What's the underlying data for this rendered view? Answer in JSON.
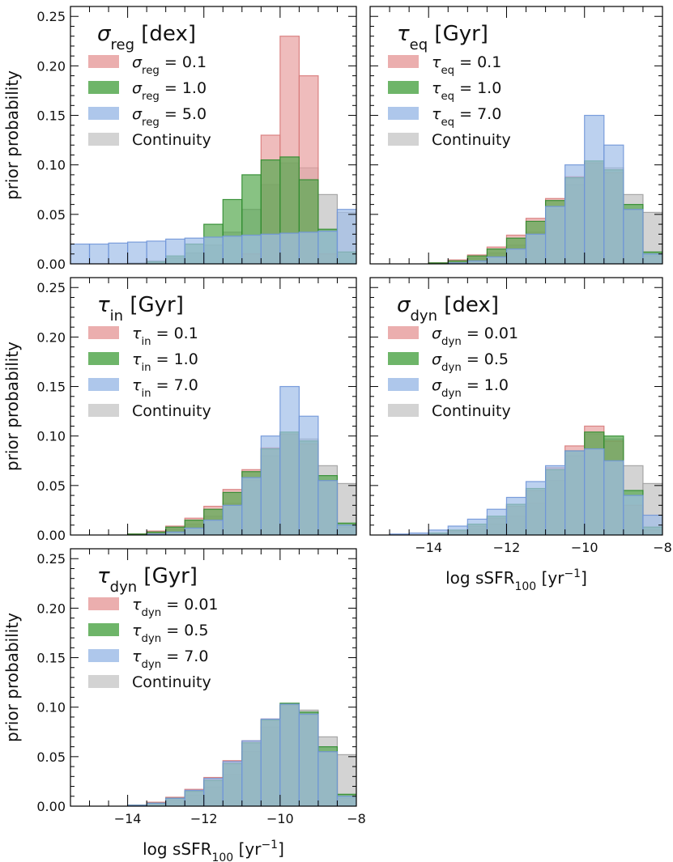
{
  "chart_data": [
    {
      "type": "histogram",
      "panel": "sigma_reg",
      "title": {
        "sym": "σ",
        "sub": "reg",
        "unit": "[dex]"
      },
      "xlabel": {
        "pre": "log sSFR",
        "sub": "100",
        "post": " [yr",
        "sup": "−1",
        "end": "]"
      },
      "xlabel_shown": false,
      "ylabel": "prior probability",
      "xlim": [
        -15.5,
        -8
      ],
      "ylim": [
        0,
        0.26
      ],
      "x_ticks": [
        -14,
        -12,
        -10,
        -8
      ],
      "x_tick_labels_shown": false,
      "y_ticks": [
        0.0,
        0.05,
        0.1,
        0.15,
        0.2,
        0.25
      ],
      "y_tick_labels": [
        "0.00",
        "0.05",
        "0.10",
        "0.15",
        "0.20",
        "0.25"
      ],
      "bin_edges": [
        -15.5,
        -15.0,
        -14.5,
        -14.0,
        -13.5,
        -13.0,
        -12.5,
        -12.0,
        -11.5,
        -11.0,
        -10.5,
        -10.0,
        -9.5,
        -9.0,
        -8.5,
        -8.0
      ],
      "series": [
        {
          "name": "Continuity",
          "label": "Continuity",
          "color": "#c8c8c8",
          "edge": "#a0a0a0",
          "values": [
            0.0,
            0.0,
            0.0,
            0.001,
            0.003,
            0.006,
            0.011,
            0.019,
            0.032,
            0.055,
            0.08,
            0.102,
            0.097,
            0.07,
            0.052
          ]
        },
        {
          "name": "sigma_reg=0.1",
          "label": {
            "sym": "σ",
            "sub": "reg",
            "val": "0.1"
          },
          "color": "#e8a0a0",
          "edge": "#d77a7a",
          "values": [
            0.0,
            0.0,
            0.0,
            0.0,
            0.0,
            0.0,
            0.0,
            0.0,
            0.0,
            0.01,
            0.13,
            0.23,
            0.19,
            0.01,
            0.0
          ]
        },
        {
          "name": "sigma_reg=1.0",
          "label": {
            "sym": "σ",
            "sub": "reg",
            "val": "1.0"
          },
          "color": "#55a84f",
          "edge": "#2e8b2e",
          "values": [
            0.0,
            0.0,
            0.0,
            0.0,
            0.002,
            0.008,
            0.02,
            0.04,
            0.065,
            0.09,
            0.105,
            0.108,
            0.085,
            0.035,
            0.012
          ]
        },
        {
          "name": "sigma_reg=5.0",
          "label": {
            "sym": "σ",
            "sub": "reg",
            "val": "5.0"
          },
          "color": "#a0bde8",
          "edge": "#6f95d8",
          "values": [
            0.02,
            0.02,
            0.021,
            0.022,
            0.023,
            0.025,
            0.026,
            0.027,
            0.028,
            0.029,
            0.03,
            0.031,
            0.032,
            0.033,
            0.055
          ]
        }
      ]
    },
    {
      "type": "histogram",
      "panel": "tau_eq",
      "title": {
        "sym": "τ",
        "sub": "eq",
        "unit": "[Gyr]"
      },
      "xlabel": {
        "pre": "log sSFR",
        "sub": "100",
        "post": " [yr",
        "sup": "−1",
        "end": "]"
      },
      "xlabel_shown": false,
      "ylabel": "prior probability",
      "ylabel_shown": false,
      "xlim": [
        -15.5,
        -8
      ],
      "ylim": [
        0,
        0.26
      ],
      "x_ticks": [
        -14,
        -12,
        -10,
        -8
      ],
      "x_tick_labels_shown": false,
      "y_ticks": [
        0.0,
        0.05,
        0.1,
        0.15,
        0.2,
        0.25
      ],
      "y_tick_labels_shown": false,
      "bin_edges": [
        -15.5,
        -15.0,
        -14.5,
        -14.0,
        -13.5,
        -13.0,
        -12.5,
        -12.0,
        -11.5,
        -11.0,
        -10.5,
        -10.0,
        -9.5,
        -9.0,
        -8.5,
        -8.0
      ],
      "series": [
        {
          "name": "Continuity",
          "label": "Continuity",
          "color": "#c8c8c8",
          "edge": "#a0a0a0",
          "values": [
            0.0,
            0.0,
            0.0,
            0.001,
            0.003,
            0.006,
            0.011,
            0.019,
            0.032,
            0.055,
            0.08,
            0.102,
            0.097,
            0.07,
            0.052
          ]
        },
        {
          "name": "tau_eq=0.1",
          "label": {
            "sym": "τ",
            "sub": "eq",
            "val": "0.1"
          },
          "color": "#e8a0a0",
          "edge": "#d77a7a",
          "values": [
            0.0,
            0.0,
            0.0,
            0.001,
            0.004,
            0.009,
            0.017,
            0.029,
            0.046,
            0.066,
            0.088,
            0.102,
            0.092,
            0.055,
            0.008
          ]
        },
        {
          "name": "tau_eq=1.0",
          "label": {
            "sym": "τ",
            "sub": "eq",
            "val": "1.0"
          },
          "color": "#55a84f",
          "edge": "#2e8b2e",
          "values": [
            0.0,
            0.0,
            0.0,
            0.001,
            0.003,
            0.008,
            0.015,
            0.026,
            0.043,
            0.064,
            0.087,
            0.104,
            0.095,
            0.06,
            0.012
          ]
        },
        {
          "name": "tau_eq=7.0",
          "label": {
            "sym": "τ",
            "sub": "eq",
            "val": "7.0"
          },
          "color": "#a0bde8",
          "edge": "#6f95d8",
          "values": [
            0.0,
            0.0,
            0.0,
            0.0,
            0.001,
            0.003,
            0.007,
            0.015,
            0.03,
            0.058,
            0.1,
            0.15,
            0.12,
            0.055,
            0.01
          ]
        }
      ]
    },
    {
      "type": "histogram",
      "panel": "tau_in",
      "title": {
        "sym": "τ",
        "sub": "in",
        "unit": "[Gyr]"
      },
      "xlabel": {
        "pre": "log sSFR",
        "sub": "100",
        "post": " [yr",
        "sup": "−1",
        "end": "]"
      },
      "xlabel_shown": false,
      "ylabel": "prior probability",
      "xlim": [
        -15.5,
        -8
      ],
      "ylim": [
        0,
        0.26
      ],
      "x_ticks": [
        -14,
        -12,
        -10,
        -8
      ],
      "x_tick_labels_shown": false,
      "y_ticks": [
        0.0,
        0.05,
        0.1,
        0.15,
        0.2,
        0.25
      ],
      "y_tick_labels": [
        "0.00",
        "0.05",
        "0.10",
        "0.15",
        "0.20",
        "0.25"
      ],
      "bin_edges": [
        -15.5,
        -15.0,
        -14.5,
        -14.0,
        -13.5,
        -13.0,
        -12.5,
        -12.0,
        -11.5,
        -11.0,
        -10.5,
        -10.0,
        -9.5,
        -9.0,
        -8.5,
        -8.0
      ],
      "series": [
        {
          "name": "Continuity",
          "label": "Continuity",
          "color": "#c8c8c8",
          "edge": "#a0a0a0",
          "values": [
            0.0,
            0.0,
            0.0,
            0.001,
            0.003,
            0.006,
            0.011,
            0.019,
            0.032,
            0.055,
            0.08,
            0.102,
            0.097,
            0.07,
            0.052
          ]
        },
        {
          "name": "tau_in=0.1",
          "label": {
            "sym": "τ",
            "sub": "in",
            "val": "0.1"
          },
          "color": "#e8a0a0",
          "edge": "#d77a7a",
          "values": [
            0.0,
            0.0,
            0.0,
            0.001,
            0.004,
            0.009,
            0.017,
            0.029,
            0.046,
            0.066,
            0.088,
            0.102,
            0.092,
            0.055,
            0.008
          ]
        },
        {
          "name": "tau_in=1.0",
          "label": {
            "sym": "τ",
            "sub": "in",
            "val": "1.0"
          },
          "color": "#55a84f",
          "edge": "#2e8b2e",
          "values": [
            0.0,
            0.0,
            0.0,
            0.001,
            0.003,
            0.008,
            0.015,
            0.026,
            0.043,
            0.064,
            0.087,
            0.104,
            0.095,
            0.06,
            0.012
          ]
        },
        {
          "name": "tau_in=7.0",
          "label": {
            "sym": "τ",
            "sub": "in",
            "val": "7.0"
          },
          "color": "#a0bde8",
          "edge": "#6f95d8",
          "values": [
            0.0,
            0.0,
            0.0,
            0.0,
            0.001,
            0.003,
            0.007,
            0.015,
            0.03,
            0.058,
            0.1,
            0.15,
            0.12,
            0.055,
            0.01
          ]
        }
      ]
    },
    {
      "type": "histogram",
      "panel": "sigma_dyn",
      "title": {
        "sym": "σ",
        "sub": "dyn",
        "unit": "[dex]"
      },
      "xlabel": {
        "pre": "log sSFR",
        "sub": "100",
        "post": " [yr",
        "sup": "−1",
        "end": "]"
      },
      "ylabel": "prior probability",
      "ylabel_shown": false,
      "xlim": [
        -15.5,
        -8
      ],
      "ylim": [
        0,
        0.26
      ],
      "x_ticks": [
        -14,
        -12,
        -10,
        -8
      ],
      "x_tick_labels": [
        "−14",
        "−12",
        "−10",
        "−8"
      ],
      "y_ticks": [
        0.0,
        0.05,
        0.1,
        0.15,
        0.2,
        0.25
      ],
      "y_tick_labels_shown": false,
      "bin_edges": [
        -15.5,
        -15.0,
        -14.5,
        -14.0,
        -13.5,
        -13.0,
        -12.5,
        -12.0,
        -11.5,
        -11.0,
        -10.5,
        -10.0,
        -9.5,
        -9.0,
        -8.5,
        -8.0
      ],
      "series": [
        {
          "name": "Continuity",
          "label": "Continuity",
          "color": "#c8c8c8",
          "edge": "#a0a0a0",
          "values": [
            0.0,
            0.0,
            0.0,
            0.001,
            0.003,
            0.006,
            0.011,
            0.019,
            0.032,
            0.055,
            0.08,
            0.102,
            0.097,
            0.07,
            0.052
          ]
        },
        {
          "name": "sigma_dyn=0.01",
          "label": {
            "sym": "σ",
            "sub": "dyn",
            "val": "0.01"
          },
          "color": "#e8a0a0",
          "edge": "#d77a7a",
          "values": [
            0.0,
            0.0,
            0.0,
            0.001,
            0.004,
            0.009,
            0.017,
            0.029,
            0.045,
            0.068,
            0.09,
            0.11,
            0.095,
            0.03,
            0.005
          ]
        },
        {
          "name": "sigma_dyn=0.5",
          "label": {
            "sym": "σ",
            "sub": "dyn",
            "val": "0.5"
          },
          "color": "#55a84f",
          "edge": "#2e8b2e",
          "values": [
            0.0,
            0.0,
            0.0,
            0.002,
            0.005,
            0.011,
            0.019,
            0.031,
            0.047,
            0.066,
            0.085,
            0.104,
            0.1,
            0.045,
            0.008
          ]
        },
        {
          "name": "sigma_dyn=1.0",
          "label": {
            "sym": "σ",
            "sub": "dyn",
            "val": "1.0"
          },
          "color": "#a0bde8",
          "edge": "#6f95d8",
          "values": [
            0.0,
            0.001,
            0.002,
            0.005,
            0.009,
            0.016,
            0.026,
            0.038,
            0.054,
            0.07,
            0.085,
            0.087,
            0.075,
            0.04,
            0.02
          ]
        }
      ]
    },
    {
      "type": "histogram",
      "panel": "tau_dyn",
      "title": {
        "sym": "τ",
        "sub": "dyn",
        "unit": "[Gyr]"
      },
      "xlabel": {
        "pre": "log sSFR",
        "sub": "100",
        "post": " [yr",
        "sup": "−1",
        "end": "]"
      },
      "ylabel": "prior probability",
      "xlim": [
        -15.5,
        -8
      ],
      "ylim": [
        0,
        0.26
      ],
      "x_ticks": [
        -14,
        -12,
        -10,
        -8
      ],
      "x_tick_labels": [
        "−14",
        "−12",
        "−10",
        "−8"
      ],
      "y_ticks": [
        0.0,
        0.05,
        0.1,
        0.15,
        0.2,
        0.25
      ],
      "y_tick_labels": [
        "0.00",
        "0.05",
        "0.10",
        "0.15",
        "0.20",
        "0.25"
      ],
      "bin_edges": [
        -15.5,
        -15.0,
        -14.5,
        -14.0,
        -13.5,
        -13.0,
        -12.5,
        -12.0,
        -11.5,
        -11.0,
        -10.5,
        -10.0,
        -9.5,
        -9.0,
        -8.5,
        -8.0
      ],
      "series": [
        {
          "name": "Continuity",
          "label": "Continuity",
          "color": "#c8c8c8",
          "edge": "#a0a0a0",
          "values": [
            0.0,
            0.0,
            0.0,
            0.001,
            0.003,
            0.006,
            0.011,
            0.019,
            0.032,
            0.055,
            0.08,
            0.102,
            0.097,
            0.07,
            0.052
          ]
        },
        {
          "name": "tau_dyn=0.01",
          "label": {
            "sym": "τ",
            "sub": "dyn",
            "val": "0.01"
          },
          "color": "#e8a0a0",
          "edge": "#d77a7a",
          "values": [
            0.0,
            0.0,
            0.0,
            0.001,
            0.004,
            0.009,
            0.017,
            0.029,
            0.046,
            0.066,
            0.088,
            0.102,
            0.092,
            0.055,
            0.008
          ]
        },
        {
          "name": "tau_dyn=0.5",
          "label": {
            "sym": "τ",
            "sub": "dyn",
            "val": "0.5"
          },
          "color": "#55a84f",
          "edge": "#2e8b2e",
          "values": [
            0.0,
            0.0,
            0.0,
            0.001,
            0.003,
            0.008,
            0.015,
            0.026,
            0.043,
            0.064,
            0.087,
            0.104,
            0.095,
            0.06,
            0.012
          ]
        },
        {
          "name": "tau_dyn=7.0",
          "label": {
            "sym": "τ",
            "sub": "dyn",
            "val": "7.0"
          },
          "color": "#a0bde8",
          "edge": "#6f95d8",
          "values": [
            0.0,
            0.0,
            0.0,
            0.001,
            0.003,
            0.008,
            0.016,
            0.028,
            0.045,
            0.066,
            0.088,
            0.103,
            0.093,
            0.055,
            0.01
          ]
        }
      ]
    }
  ]
}
